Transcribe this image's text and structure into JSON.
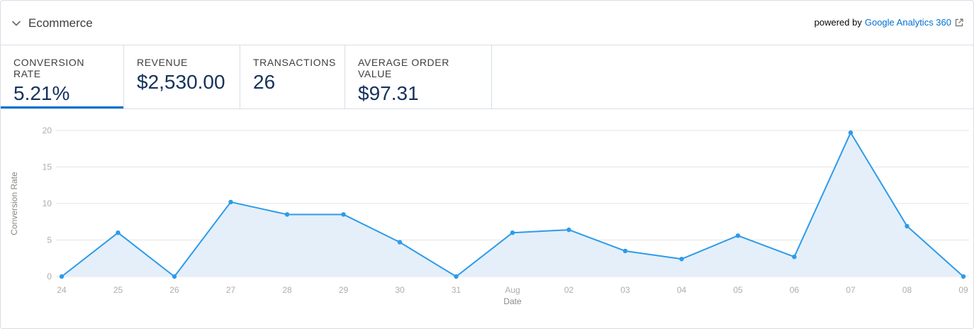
{
  "header": {
    "title": "Ecommerce",
    "powered_prefix": "powered by",
    "powered_link": "Google Analytics 360",
    "toggle_icon": "chevron-down-icon",
    "external_icon": "external-link-icon"
  },
  "tabs": [
    {
      "label": "CONVERSION RATE",
      "value": "5.21%",
      "active": true
    },
    {
      "label": "REVENUE",
      "value": "$2,530.00",
      "active": false
    },
    {
      "label": "TRANSACTIONS",
      "value": "26",
      "active": false
    },
    {
      "label": "AVERAGE ORDER VALUE",
      "value": "$97.31",
      "active": false
    }
  ],
  "colors": {
    "accent": "#0070d2",
    "line": "#2e9be8",
    "area": "#e4effa",
    "grid": "#e5e5e5"
  },
  "chart_data": {
    "type": "area",
    "xlabel": "Date",
    "ylabel": "Conversion Rate",
    "ylim": [
      0,
      20
    ],
    "yticks": [
      0,
      5,
      10,
      15,
      20
    ],
    "grid": true,
    "x": [
      "24",
      "25",
      "26",
      "27",
      "28",
      "29",
      "30",
      "31",
      "Aug",
      "02",
      "03",
      "04",
      "05",
      "06",
      "07",
      "08",
      "09"
    ],
    "series": [
      {
        "values": [
          0,
          6.0,
          0,
          10.2,
          8.5,
          8.5,
          4.7,
          0,
          6.0,
          6.4,
          3.5,
          2.4,
          5.6,
          2.7,
          19.7,
          6.9,
          0
        ]
      }
    ]
  }
}
